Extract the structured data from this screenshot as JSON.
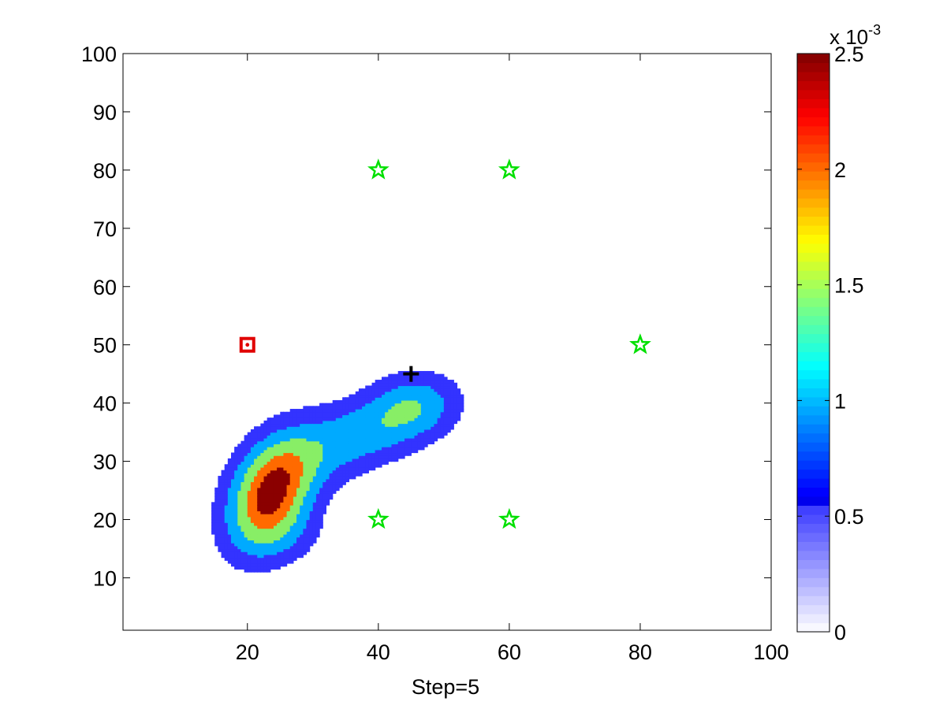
{
  "chart_data": {
    "type": "contour",
    "xlabel": "Step=5",
    "ylabel": "",
    "title": "",
    "xlim": [
      1,
      100
    ],
    "ylim": [
      1,
      100
    ],
    "x_ticks": [
      20,
      40,
      60,
      80,
      100
    ],
    "y_ticks": [
      10,
      20,
      30,
      40,
      50,
      60,
      70,
      80,
      90,
      100
    ],
    "grid": false,
    "contour_levels": [
      0.0005,
      0.001,
      0.0015,
      0.002,
      0.0024
    ],
    "level_colors": [
      "#3333ff",
      "#00aaff",
      "#88ee66",
      "#ff6a00",
      "#8b0000"
    ],
    "density_peaks": [
      {
        "x": 23.5,
        "y": 24.5,
        "peak": 0.00245,
        "sigma_major": 7.5,
        "sigma_minor": 4.5,
        "angle_deg": 70
      },
      {
        "x": 38,
        "y": 35,
        "peak": 0.0013,
        "sigma_major": 9,
        "sigma_minor": 4.5,
        "angle_deg": 25
      },
      {
        "x": 46,
        "y": 40,
        "peak": 0.0008,
        "sigma_major": 4.5,
        "sigma_minor": 4,
        "angle_deg": 0
      },
      {
        "x": 26,
        "y": 17,
        "peak": 0.0004,
        "sigma_major": 5,
        "sigma_minor": 4,
        "angle_deg": 0
      }
    ],
    "markers": {
      "green_stars": [
        {
          "x": 40,
          "y": 80
        },
        {
          "x": 60,
          "y": 80
        },
        {
          "x": 80,
          "y": 50
        },
        {
          "x": 40,
          "y": 20
        },
        {
          "x": 60,
          "y": 20
        }
      ],
      "red_square": {
        "x": 20,
        "y": 50
      },
      "black_plus": {
        "x": 45,
        "y": 45
      }
    },
    "colorbar": {
      "min": 0,
      "max": 0.0025,
      "exponent_label": "x 10",
      "exponent_power": "-3",
      "tick_values": [
        0,
        0.5,
        1,
        1.5,
        2,
        2.5
      ],
      "tick_labels": [
        "0",
        "0.5",
        "1",
        "1.5",
        "2",
        "2.5"
      ],
      "colormap": "white-to-jet"
    }
  }
}
